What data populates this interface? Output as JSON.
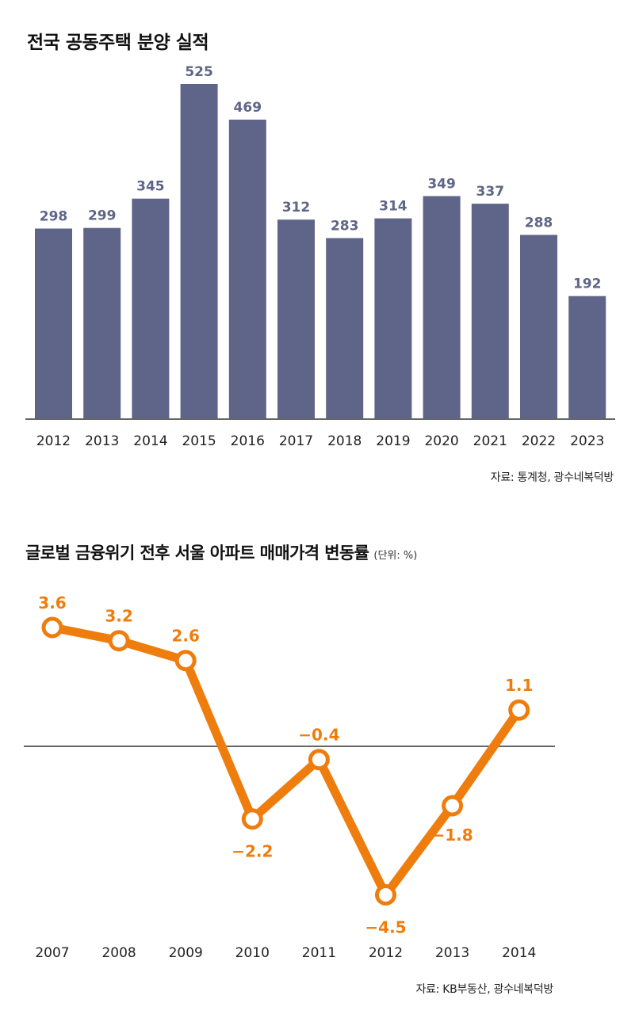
{
  "bar_section": {
    "title": "전국 공동주택 분양 실적",
    "source": "자료: 통계청, 광수네복덕방"
  },
  "line_section": {
    "title": "글로벌 금융위기 전후 서울 아파트 매매가격 변동률",
    "unit": "(단위: %)",
    "source": "자료: KB부동산, 광수네복덕방"
  },
  "colors": {
    "bar": "#5f6588",
    "bar_label": "#5f6588",
    "line": "#ef7d0d",
    "axis": "#333333"
  },
  "chart_data": [
    {
      "type": "bar",
      "title": "전국 공동주택 분양 실적",
      "categories": [
        "2012",
        "2013",
        "2014",
        "2015",
        "2016",
        "2017",
        "2018",
        "2019",
        "2020",
        "2021",
        "2022",
        "2023"
      ],
      "values": [
        298,
        299,
        345,
        525,
        469,
        312,
        283,
        314,
        349,
        337,
        288,
        192
      ],
      "value_labels": [
        "298",
        "299",
        "345",
        "525",
        "469",
        "312",
        "283",
        "314",
        "349",
        "337",
        "288",
        "192"
      ],
      "ylim": [
        0,
        525
      ],
      "grid": false,
      "legend": "none"
    },
    {
      "type": "line",
      "title": "글로벌 금융위기 전후 서울 아파트 매매가격 변동률",
      "unit": "(단위: %)",
      "categories": [
        "2007",
        "2008",
        "2009",
        "2010",
        "2011",
        "2012",
        "2013",
        "2014"
      ],
      "values": [
        3.6,
        3.2,
        2.6,
        -2.2,
        -0.4,
        -4.5,
        -1.8,
        1.1
      ],
      "value_labels": [
        "3.6",
        "3.2",
        "2.6",
        "−2.2",
        "−0.4",
        "−4.5",
        "−1.8",
        "1.1"
      ],
      "ylim": [
        -4.5,
        3.6
      ],
      "zero_line": true,
      "grid": false,
      "legend": "none"
    }
  ]
}
